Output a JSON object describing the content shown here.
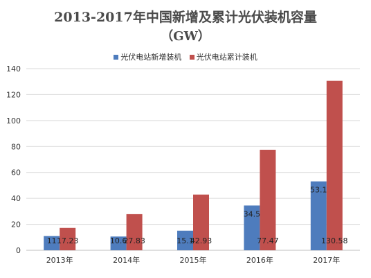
{
  "chart_data": {
    "type": "bar",
    "title": "2013-2017年中国新增及累计光伏装机容量",
    "subtitle": "（GW）",
    "categories": [
      "2013年",
      "2014年",
      "2015年",
      "2016年",
      "2017年"
    ],
    "series": [
      {
        "name": "光伏电站新增装机",
        "color": "#4e7cbd",
        "values": [
          11,
          10.6,
          15.1,
          34.5,
          53.1
        ]
      },
      {
        "name": "光伏电站累计装机",
        "color": "#c0504d",
        "values": [
          17.23,
          27.83,
          42.93,
          77.47,
          130.58
        ]
      }
    ],
    "data_labels": [
      [
        "11",
        "10.6",
        "15.1",
        "34.5",
        "53.1"
      ],
      [
        "17.23",
        "27.83",
        "42.93",
        "77.47",
        "130.58"
      ]
    ],
    "ylim": [
      0,
      140
    ],
    "yticks": [
      0,
      20,
      40,
      60,
      80,
      100,
      120,
      140
    ],
    "grid": true,
    "legend": "top-center"
  }
}
